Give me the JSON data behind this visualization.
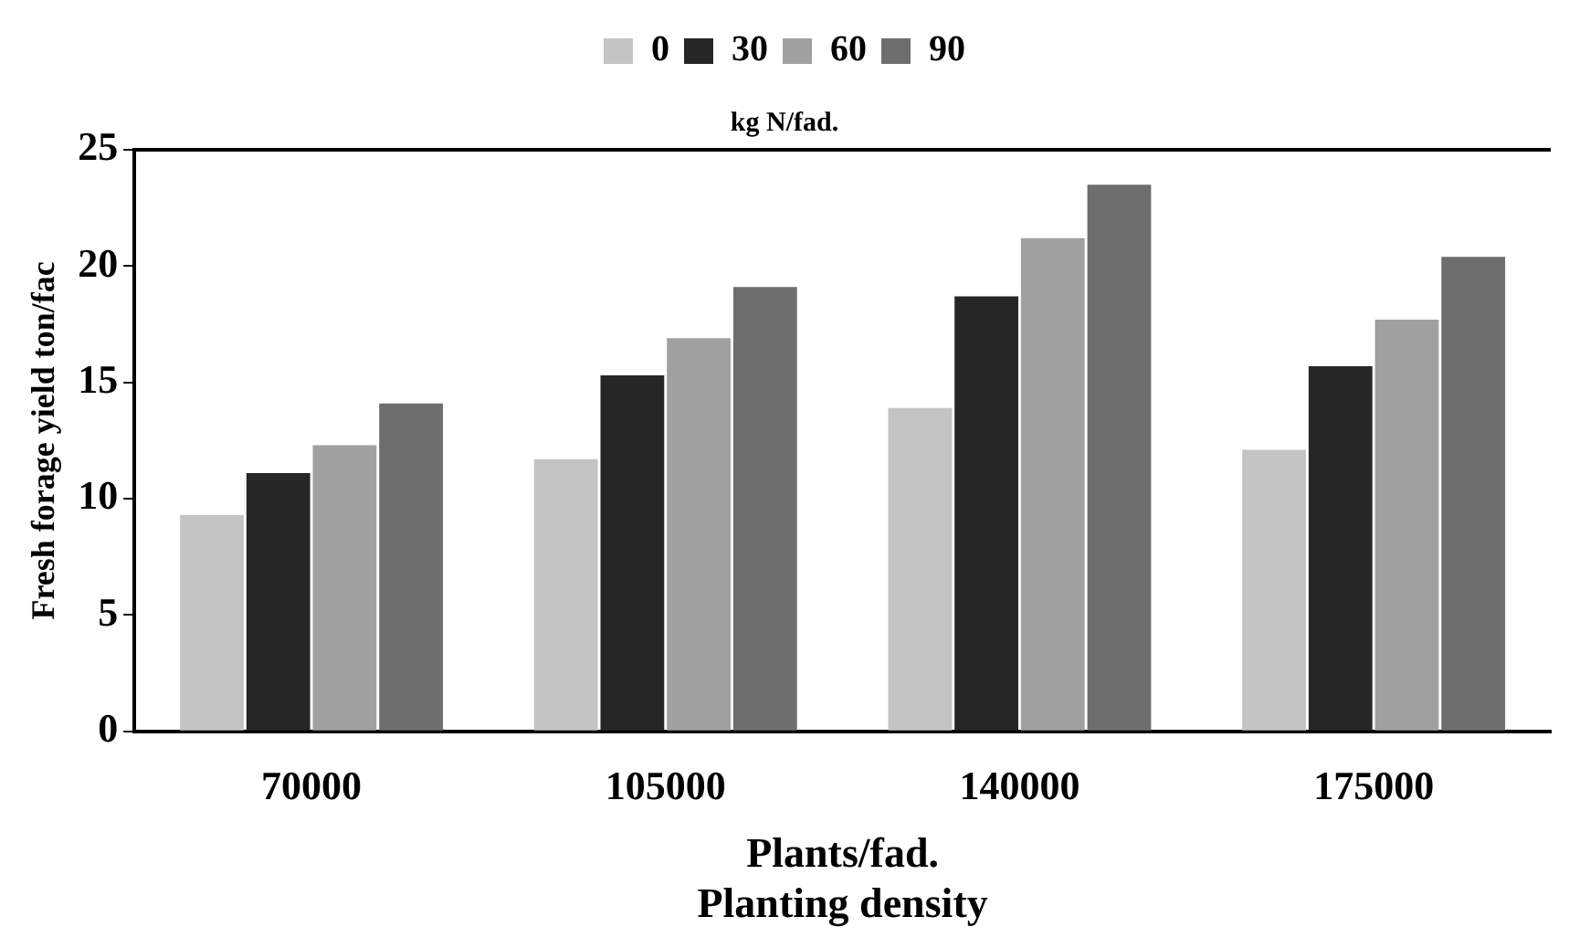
{
  "chart_data": {
    "type": "bar",
    "xlabel": "Plants/fad.\nPlanting density",
    "ylabel": "Fresh forage yield ton/fac",
    "legend_title": "kg N/fad.",
    "categories": [
      "70000",
      "105000",
      "140000",
      "175000"
    ],
    "series": [
      {
        "name": "0",
        "color": "#c4c4c4",
        "values": [
          9.3,
          11.7,
          13.9,
          12.1
        ]
      },
      {
        "name": "30",
        "color": "#262626",
        "values": [
          11.1,
          15.3,
          18.7,
          15.7
        ]
      },
      {
        "name": "60",
        "color": "#a0a0a0",
        "values": [
          12.3,
          16.9,
          21.2,
          17.7
        ]
      },
      {
        "name": "90",
        "color": "#6e6e6e",
        "values": [
          14.1,
          19.1,
          23.5,
          20.4
        ]
      }
    ],
    "ylim": [
      0,
      25
    ],
    "yticks": [
      0,
      5,
      10,
      15,
      20,
      25
    ],
    "grid": false,
    "legend": "top"
  }
}
